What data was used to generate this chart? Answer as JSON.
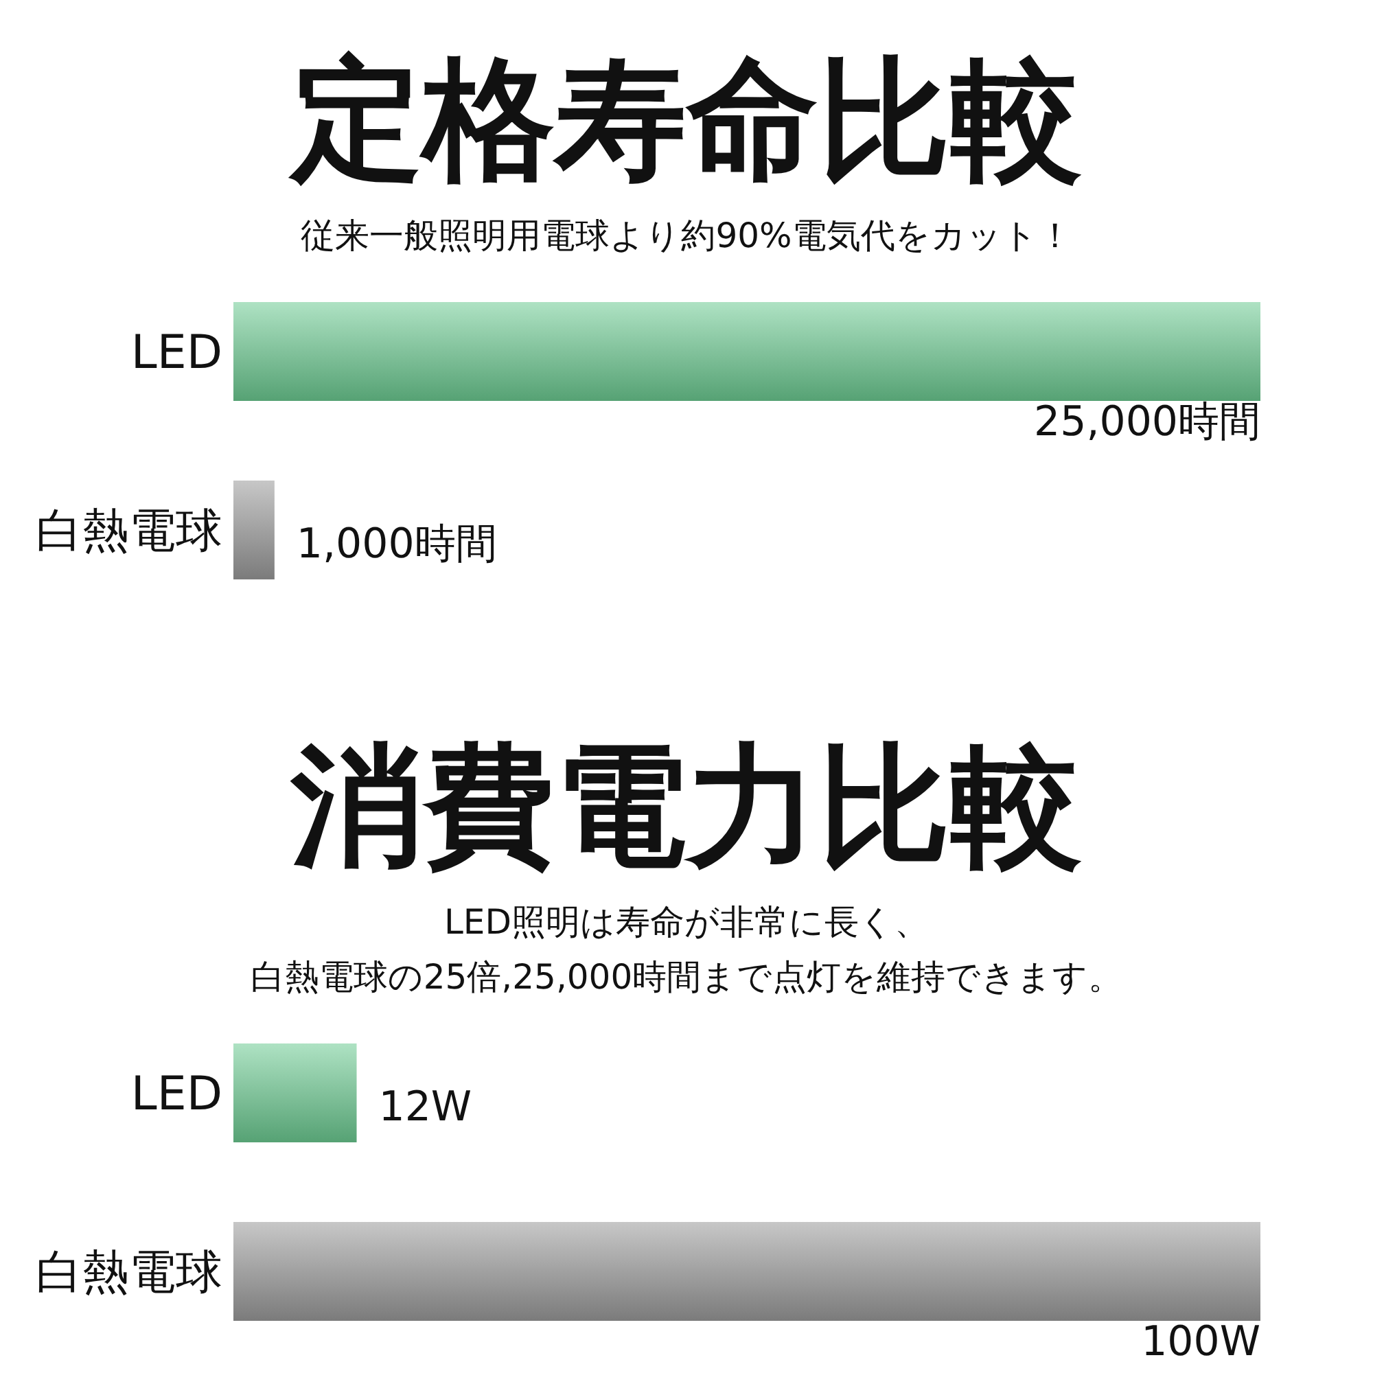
{
  "chart_data": [
    {
      "type": "bar",
      "orientation": "horizontal",
      "title": "定格寿命比較",
      "subtitle": "従来一般照明用電球より約90%電気代をカット！",
      "categories": [
        "LED",
        "白熱電球"
      ],
      "values": [
        25000,
        1000
      ],
      "colors": [
        "#6cca91",
        "#9a9a9a"
      ],
      "value_labels": [
        "25,000時間",
        "1,000時間"
      ],
      "tick_labels": "y"
    },
    {
      "type": "bar",
      "orientation": "horizontal",
      "title": "消費電力比較",
      "subtitle": "LED照明は寿命が非常に長く、白熱電球の25倍,25,000時間まで点灯を維持できます。",
      "categories": [
        "LED",
        "白熱電球"
      ],
      "values": [
        12,
        100
      ],
      "colors": [
        "#6cca91",
        "#9a9a9a"
      ],
      "value_labels": [
        "12W",
        "100W"
      ],
      "tick_labels": "y"
    }
  ]
}
